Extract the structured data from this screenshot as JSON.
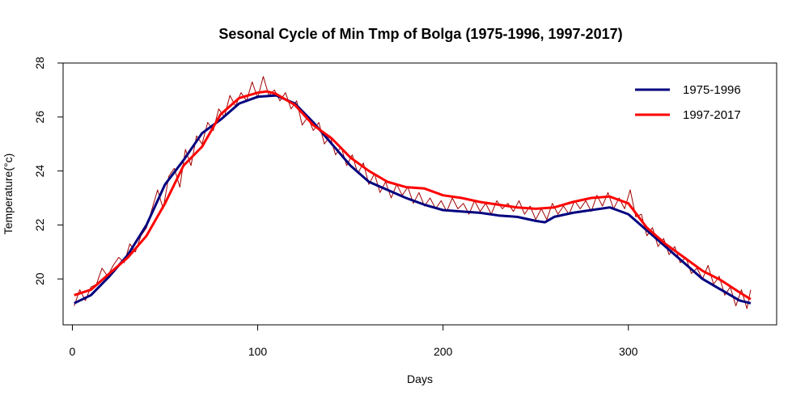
{
  "chart_data": {
    "type": "line",
    "title": "Sesonal Cycle of Min Tmp of Bolga (1975-1996, 1997-2017)",
    "xlabel": "Days",
    "ylabel": "Temperature(°c)",
    "xlim": [
      -5,
      380
    ],
    "ylim": [
      18.3,
      28
    ],
    "xticks": [
      "0",
      "100",
      "200",
      "300"
    ],
    "yticks": [
      "20",
      "22",
      "24",
      "26",
      "28"
    ],
    "grid": false,
    "legend_position": "top-right",
    "series": [
      {
        "name": "1975-1996",
        "color": "#00007f",
        "x": [
          1,
          10,
          20,
          30,
          40,
          50,
          60,
          70,
          80,
          90,
          100,
          110,
          120,
          130,
          140,
          150,
          160,
          170,
          180,
          190,
          200,
          210,
          220,
          230,
          240,
          250,
          255,
          260,
          270,
          280,
          290,
          300,
          310,
          320,
          330,
          340,
          350,
          360,
          366
        ],
        "y": [
          19.1,
          19.4,
          20.1,
          20.9,
          22.0,
          23.5,
          24.4,
          25.4,
          25.9,
          26.5,
          26.75,
          26.8,
          26.5,
          25.8,
          25.0,
          24.2,
          23.6,
          23.3,
          23.0,
          22.75,
          22.55,
          22.5,
          22.45,
          22.35,
          22.3,
          22.15,
          22.1,
          22.3,
          22.45,
          22.55,
          22.65,
          22.4,
          21.8,
          21.2,
          20.6,
          20.0,
          19.6,
          19.2,
          19.1
        ]
      },
      {
        "name": "1997-2017",
        "color": "#ff0000",
        "x": [
          1,
          10,
          20,
          30,
          40,
          50,
          60,
          70,
          80,
          90,
          100,
          105,
          110,
          120,
          130,
          140,
          150,
          160,
          170,
          180,
          190,
          200,
          210,
          220,
          230,
          240,
          250,
          260,
          270,
          280,
          290,
          300,
          310,
          320,
          330,
          340,
          350,
          360,
          366
        ],
        "y": [
          19.4,
          19.6,
          20.2,
          20.8,
          21.6,
          22.8,
          24.2,
          24.9,
          26.1,
          26.7,
          26.9,
          26.95,
          26.85,
          26.45,
          25.7,
          25.2,
          24.5,
          24.0,
          23.6,
          23.4,
          23.35,
          23.1,
          23.0,
          22.85,
          22.75,
          22.65,
          22.6,
          22.65,
          22.85,
          23.0,
          23.05,
          22.8,
          21.9,
          21.3,
          20.8,
          20.3,
          19.95,
          19.5,
          19.25
        ]
      },
      {
        "name": "",
        "color": "#a00000",
        "x": [
          1,
          4,
          7,
          10,
          13,
          16,
          19,
          22,
          25,
          28,
          31,
          34,
          37,
          40,
          43,
          46,
          49,
          52,
          55,
          58,
          61,
          64,
          67,
          70,
          73,
          76,
          79,
          82,
          85,
          88,
          91,
          94,
          97,
          100,
          103,
          106,
          109,
          112,
          115,
          118,
          121,
          124,
          127,
          130,
          133,
          136,
          139,
          142,
          145,
          148,
          151,
          154,
          157,
          160,
          163,
          166,
          169,
          172,
          175,
          178,
          181,
          184,
          187,
          190,
          193,
          196,
          199,
          202,
          205,
          208,
          211,
          214,
          217,
          220,
          223,
          226,
          229,
          232,
          235,
          238,
          241,
          244,
          247,
          250,
          253,
          256,
          259,
          262,
          265,
          268,
          271,
          274,
          277,
          280,
          283,
          286,
          289,
          292,
          295,
          298,
          301,
          304,
          307,
          310,
          313,
          316,
          319,
          322,
          325,
          328,
          331,
          334,
          337,
          340,
          343,
          346,
          349,
          352,
          355,
          358,
          361,
          364,
          366
        ],
        "y": [
          19.0,
          19.6,
          19.2,
          19.7,
          19.8,
          20.4,
          20.1,
          20.5,
          20.8,
          20.6,
          21.3,
          21.0,
          21.6,
          21.9,
          22.6,
          23.3,
          22.6,
          23.8,
          24.1,
          23.4,
          24.8,
          24.2,
          25.3,
          25.0,
          25.8,
          25.5,
          26.3,
          26.0,
          26.8,
          26.4,
          26.9,
          26.6,
          27.3,
          26.7,
          27.5,
          26.8,
          27.0,
          26.6,
          26.9,
          26.3,
          26.6,
          25.7,
          26.0,
          25.5,
          25.8,
          25.0,
          25.3,
          24.6,
          24.9,
          24.2,
          24.6,
          23.9,
          24.3,
          23.5,
          23.9,
          23.2,
          23.6,
          23.0,
          23.5,
          23.1,
          23.4,
          22.8,
          23.2,
          22.7,
          23.0,
          22.6,
          22.9,
          22.5,
          23.0,
          22.6,
          22.8,
          22.4,
          22.9,
          22.5,
          22.8,
          22.4,
          22.9,
          22.6,
          22.8,
          22.5,
          22.9,
          22.4,
          22.7,
          22.2,
          22.6,
          22.2,
          22.8,
          22.4,
          22.7,
          22.4,
          22.9,
          22.6,
          22.9,
          22.5,
          23.1,
          22.7,
          23.2,
          22.6,
          23.0,
          22.6,
          23.3,
          22.3,
          22.4,
          21.6,
          21.9,
          21.2,
          21.5,
          20.9,
          21.2,
          20.6,
          20.8,
          20.2,
          20.4,
          20.0,
          20.5,
          19.8,
          20.1,
          19.4,
          19.7,
          19.0,
          19.6,
          18.9,
          19.6
        ]
      }
    ]
  }
}
